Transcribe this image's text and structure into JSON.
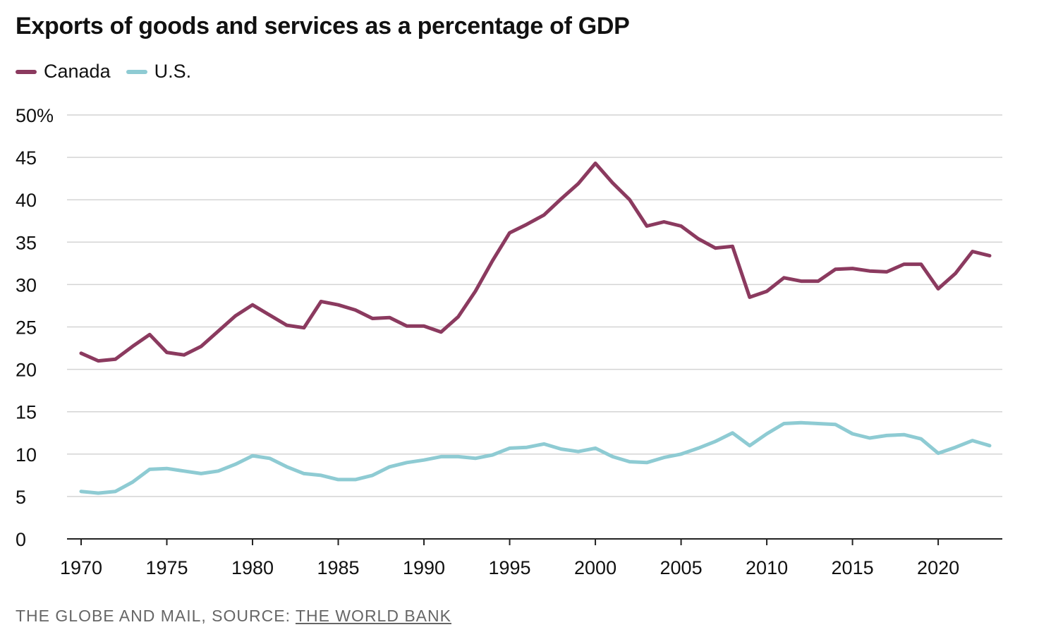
{
  "chart_data": {
    "type": "line",
    "title": "Exports of goods and services as a percentage of GDP",
    "xlabel": "",
    "ylabel": "",
    "x": [
      1970,
      1971,
      1972,
      1973,
      1974,
      1975,
      1976,
      1977,
      1978,
      1979,
      1980,
      1981,
      1982,
      1983,
      1984,
      1985,
      1986,
      1987,
      1988,
      1989,
      1990,
      1991,
      1992,
      1993,
      1994,
      1995,
      1996,
      1997,
      1998,
      1999,
      2000,
      2001,
      2002,
      2003,
      2004,
      2005,
      2006,
      2007,
      2008,
      2009,
      2010,
      2011,
      2012,
      2013,
      2014,
      2015,
      2016,
      2017,
      2018,
      2019,
      2020,
      2021,
      2022,
      2023
    ],
    "series": [
      {
        "name": "Canada",
        "color": "#8b3a5f",
        "values": [
          21.9,
          21.0,
          21.2,
          22.7,
          24.1,
          22.0,
          21.7,
          22.7,
          24.5,
          26.3,
          27.6,
          26.4,
          25.2,
          24.9,
          28.0,
          27.6,
          27.0,
          26.0,
          26.1,
          25.1,
          25.1,
          24.4,
          26.2,
          29.2,
          32.8,
          36.1,
          37.1,
          38.2,
          40.1,
          41.9,
          44.3,
          42.0,
          40.0,
          36.9,
          37.4,
          36.9,
          35.4,
          34.3,
          34.5,
          28.5,
          29.2,
          30.8,
          30.4,
          30.4,
          31.8,
          31.9,
          31.6,
          31.5,
          32.4,
          32.4,
          29.5,
          31.3,
          33.9,
          33.4
        ]
      },
      {
        "name": "U.S.",
        "color": "#8ecbd3",
        "values": [
          5.6,
          5.4,
          5.6,
          6.7,
          8.2,
          8.3,
          8.0,
          7.7,
          8.0,
          8.8,
          9.8,
          9.5,
          8.5,
          7.7,
          7.5,
          7.0,
          7.0,
          7.5,
          8.5,
          9.0,
          9.3,
          9.7,
          9.7,
          9.5,
          9.9,
          10.7,
          10.8,
          11.2,
          10.6,
          10.3,
          10.7,
          9.7,
          9.1,
          9.0,
          9.6,
          10.0,
          10.7,
          11.5,
          12.5,
          11.0,
          12.4,
          13.6,
          13.7,
          13.6,
          13.5,
          12.4,
          11.9,
          12.2,
          12.3,
          11.8,
          10.1,
          10.8,
          11.6,
          11.0
        ]
      }
    ],
    "ylim": [
      0,
      50
    ],
    "yticks": [
      0,
      5,
      10,
      15,
      20,
      25,
      30,
      35,
      40,
      45,
      50
    ],
    "ytick_labels": [
      "0",
      "5",
      "10",
      "15",
      "20",
      "25",
      "30",
      "35",
      "40",
      "45",
      "50%"
    ],
    "xlim": [
      1970,
      2023
    ],
    "xticks": [
      1970,
      1975,
      1980,
      1985,
      1990,
      1995,
      2000,
      2005,
      2010,
      2015,
      2020
    ],
    "xtick_labels": [
      "1970",
      "1975",
      "1980",
      "1985",
      "1990",
      "1995",
      "2000",
      "2005",
      "2010",
      "2015",
      "2020"
    ],
    "grid": true,
    "legend": "top-left"
  },
  "legend": {
    "items": [
      {
        "label": "Canada",
        "color": "#8b3a5f"
      },
      {
        "label": "U.S.",
        "color": "#8ecbd3"
      }
    ]
  },
  "footer": {
    "credit": "The Globe and Mail, source: ",
    "source_link": "The World Bank"
  }
}
